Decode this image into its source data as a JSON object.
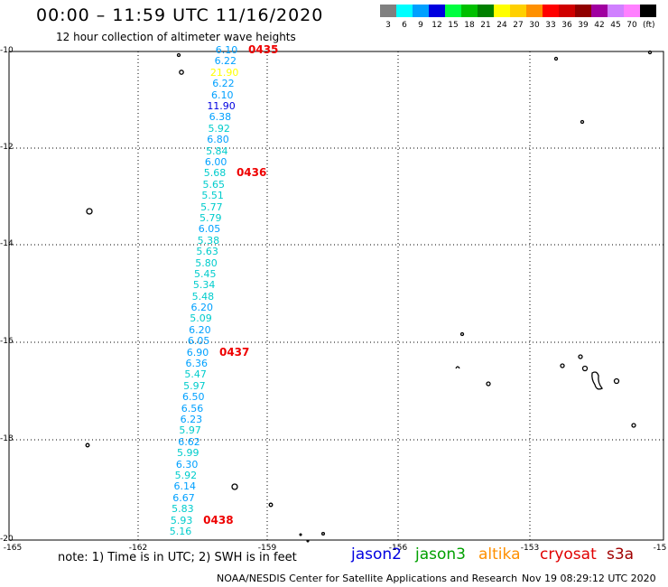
{
  "header": {
    "title": "00:00 – 11:59 UTC 11/16/2020",
    "subtitle": "12 hour collection of altimeter wave heights"
  },
  "legend": {
    "unit": "(ft)",
    "bins": [
      {
        "label": "3",
        "color": "#808080"
      },
      {
        "label": "6",
        "color": "#00ffff"
      },
      {
        "label": "9",
        "color": "#00a0ff"
      },
      {
        "label": "12",
        "color": "#0000e0"
      },
      {
        "label": "15",
        "color": "#00ff40"
      },
      {
        "label": "18",
        "color": "#00c000"
      },
      {
        "label": "21",
        "color": "#008000"
      },
      {
        "label": "24",
        "color": "#ffff00"
      },
      {
        "label": "27",
        "color": "#ffd000"
      },
      {
        "label": "30",
        "color": "#ff9000"
      },
      {
        "label": "33",
        "color": "#ff0000"
      },
      {
        "label": "36",
        "color": "#d00000"
      },
      {
        "label": "39",
        "color": "#900000"
      },
      {
        "label": "42",
        "color": "#a000a0"
      },
      {
        "label": "45",
        "color": "#d080ff"
      },
      {
        "label": "70",
        "color": "#ff80ff"
      },
      {
        "label": "",
        "color": "#000000"
      }
    ]
  },
  "map": {
    "lat_labels": [
      "-10",
      "-12",
      "-14",
      "-16",
      "-18",
      "-20"
    ],
    "lon_labels": [
      "-165",
      "-162",
      "-159",
      "-156",
      "-153",
      "-15"
    ],
    "observations": [
      {
        "t": "6.10",
        "c": "#00a0ff"
      },
      {
        "t": "6.22",
        "c": "#00a0ff"
      },
      {
        "t": "21.90",
        "c": "#ffff00"
      },
      {
        "t": "6.22",
        "c": "#00a0ff"
      },
      {
        "t": "6.10",
        "c": "#00a0ff"
      },
      {
        "t": "11.90",
        "c": "#0000e0"
      },
      {
        "t": "6.38",
        "c": "#00a0ff"
      },
      {
        "t": "5.92",
        "c": "#00cccc"
      },
      {
        "t": "6.80",
        "c": "#00a0ff"
      },
      {
        "t": "5.84",
        "c": "#00cccc"
      },
      {
        "t": "6.00",
        "c": "#00a0ff"
      },
      {
        "t": "5.68",
        "c": "#00cccc"
      },
      {
        "t": "5.65",
        "c": "#00cccc"
      },
      {
        "t": "5.51",
        "c": "#00cccc"
      },
      {
        "t": "5.77",
        "c": "#00cccc"
      },
      {
        "t": "5.79",
        "c": "#00cccc"
      },
      {
        "t": "6.05",
        "c": "#00a0ff"
      },
      {
        "t": "5.38",
        "c": "#00cccc"
      },
      {
        "t": "5.63",
        "c": "#00cccc"
      },
      {
        "t": "5.80",
        "c": "#00cccc"
      },
      {
        "t": "5.45",
        "c": "#00cccc"
      },
      {
        "t": "5.34",
        "c": "#00cccc"
      },
      {
        "t": "5.48",
        "c": "#00cccc"
      },
      {
        "t": "6.20",
        "c": "#00a0ff"
      },
      {
        "t": "5.09",
        "c": "#00cccc"
      },
      {
        "t": "6.20",
        "c": "#00a0ff"
      },
      {
        "t": "6.05",
        "c": "#00a0ff"
      },
      {
        "t": "6.90",
        "c": "#00a0ff"
      },
      {
        "t": "6.36",
        "c": "#00a0ff"
      },
      {
        "t": "5.47",
        "c": "#00cccc"
      },
      {
        "t": "5.97",
        "c": "#00cccc"
      },
      {
        "t": "6.50",
        "c": "#00a0ff"
      },
      {
        "t": "6.56",
        "c": "#00a0ff"
      },
      {
        "t": "6.23",
        "c": "#00a0ff"
      },
      {
        "t": "5.97",
        "c": "#00cccc"
      },
      {
        "t": "6.62",
        "c": "#00a0ff"
      },
      {
        "t": "5.99",
        "c": "#00cccc"
      },
      {
        "t": "6.30",
        "c": "#00a0ff"
      },
      {
        "t": "5.92",
        "c": "#00cccc"
      },
      {
        "t": "6.14",
        "c": "#00a0ff"
      },
      {
        "t": "6.67",
        "c": "#00a0ff"
      },
      {
        "t": "5.83",
        "c": "#00cccc"
      },
      {
        "t": "5.93",
        "c": "#00cccc"
      },
      {
        "t": "5.16",
        "c": "#00cccc"
      }
    ],
    "time_marks": [
      {
        "label": "0435",
        "row": 0
      },
      {
        "label": "0436",
        "row": 11
      },
      {
        "label": "0437",
        "row": 27
      },
      {
        "label": "0438",
        "row": 42
      }
    ]
  },
  "footer": {
    "note": "note: 1) Time is in UTC; 2) SWH is in feet",
    "satellites": [
      {
        "name": "jason2",
        "color": "#0000e0"
      },
      {
        "name": "jason3",
        "color": "#00a000"
      },
      {
        "name": "altika",
        "color": "#ff9000"
      },
      {
        "name": "cryosat",
        "color": "#e00000"
      },
      {
        "name": "s3a",
        "color": "#a00000"
      }
    ],
    "credit": "NOAA/NESDIS Center for Satellite Applications and Research",
    "timestamp": "Nov 19 08:29:12 UTC 2020"
  }
}
